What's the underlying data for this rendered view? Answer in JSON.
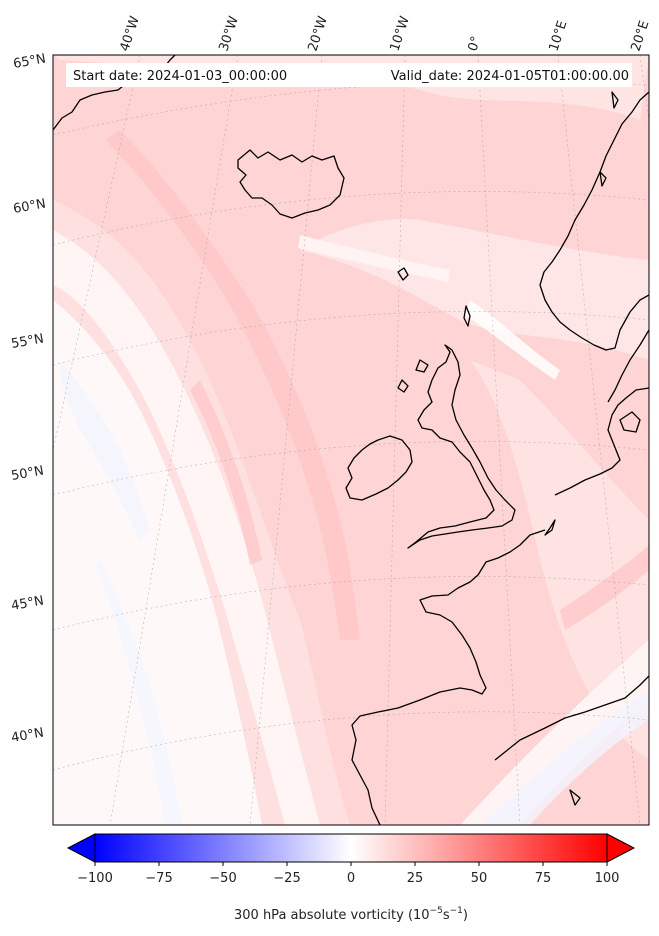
{
  "header": {
    "start_label": "Start date: 2024-01-03_00:00:00",
    "valid_label": "Valid_date: 2024-01-05T01:00:00.00"
  },
  "axes": {
    "lon_labels": [
      "40°W",
      "30°W",
      "20°W",
      "10°W",
      "0°",
      "10°E",
      "20°E"
    ],
    "lat_labels": [
      "65°N",
      "60°N",
      "55°N",
      "50°N",
      "45°N",
      "40°N"
    ]
  },
  "colorbar": {
    "tick_labels": [
      "−100",
      "−75",
      "−50",
      "−25",
      "0",
      "25",
      "50",
      "75",
      "100"
    ],
    "label_main": "300 hPa absolute vorticity (10",
    "label_exp1": "−5",
    "label_mid": "s",
    "label_exp2": "−1",
    "label_end": ")",
    "vmin": -100,
    "vmax": 100,
    "colors": {
      "low": "#0000ff",
      "mid": "#ffffff",
      "high": "#ff0000"
    }
  }
}
